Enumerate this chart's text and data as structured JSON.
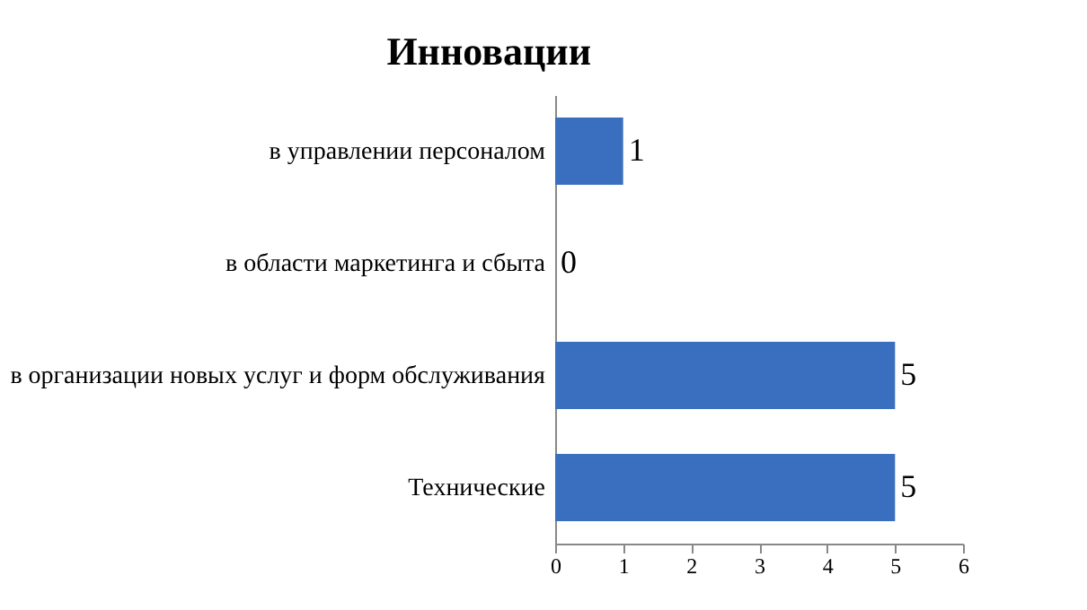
{
  "chart_data": {
    "type": "bar",
    "orientation": "horizontal",
    "title": "Инновации",
    "categories": [
      "в управлении персоналом",
      "в области маркетинга и сбыта",
      "в организации новых услуг и форм обслуживания",
      "Технические"
    ],
    "values": [
      1,
      0,
      5,
      5
    ],
    "color": "#3a6fbf",
    "xlim": [
      0,
      6
    ],
    "xticks": [
      0,
      1,
      2,
      3,
      4,
      5,
      6
    ],
    "grid": false,
    "data_labels": true
  }
}
